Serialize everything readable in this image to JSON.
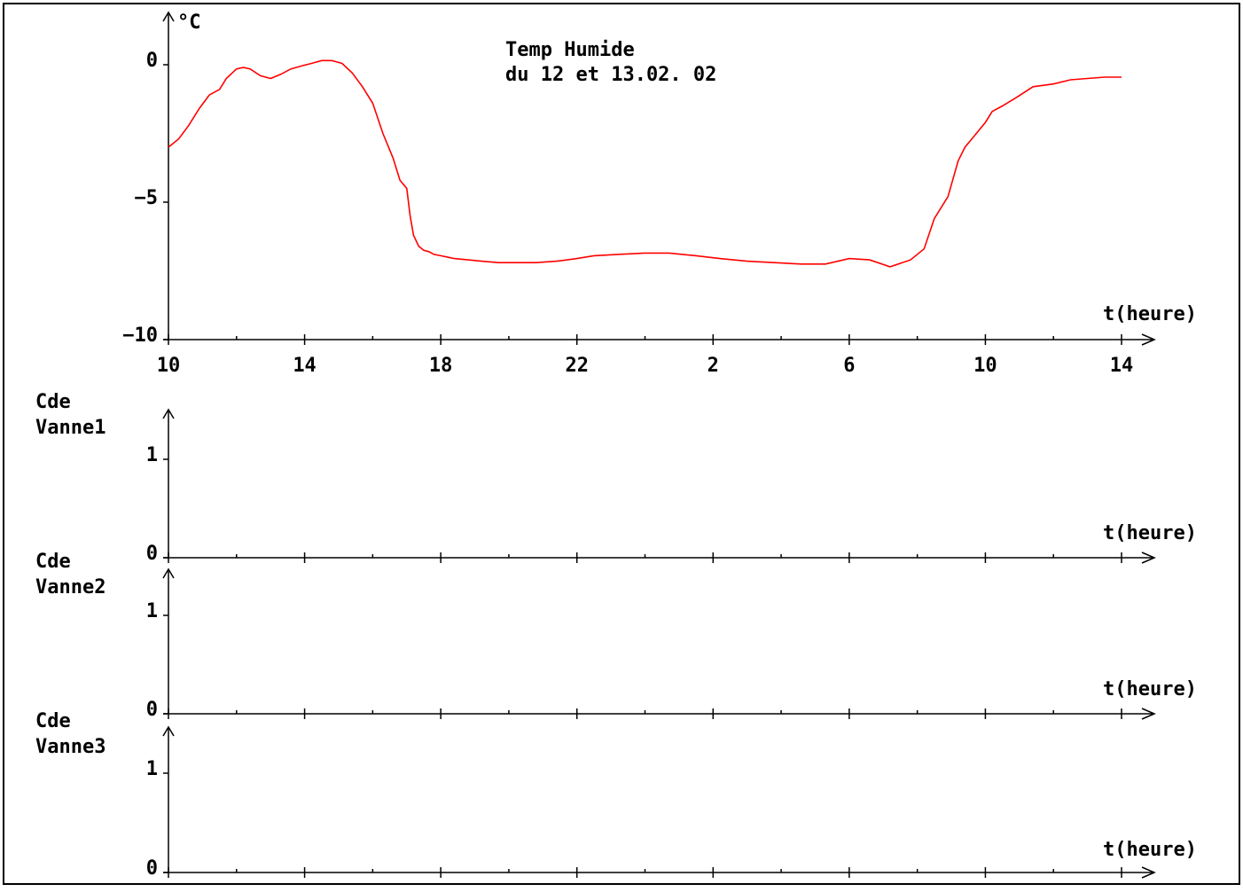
{
  "chart_data": [
    {
      "type": "line",
      "title": [
        "Temp Humide",
        "du 12 et 13.02. 02"
      ],
      "ylabel": "°C",
      "xlabel": "t(heure)",
      "ylim": [
        -10,
        1.5
      ],
      "yticks": [
        0,
        -5,
        -10
      ],
      "ytick_labels": [
        "0",
        "−5",
        "−10"
      ],
      "xtick_labels": [
        "10",
        "14",
        "18",
        "22",
        "2",
        "6",
        "10",
        "14"
      ],
      "xlim_hours_elapsed": [
        0,
        28
      ],
      "grid": false,
      "series": [
        {
          "color": "#ff0000",
          "x": [
            0,
            0.3,
            0.6,
            0.9,
            1.2,
            1.5,
            1.7,
            2.0,
            2.2,
            2.4,
            2.7,
            3.0,
            3.3,
            3.6,
            3.9,
            4.2,
            4.5,
            4.8,
            5.1,
            5.4,
            5.7,
            6.0,
            6.3,
            6.6,
            6.8,
            7.0,
            7.1,
            7.2,
            7.35,
            7.5,
            7.65,
            7.8,
            8.0,
            8.4,
            8.8,
            9.2,
            9.7,
            10.2,
            10.8,
            11.4,
            12.0,
            12.5,
            13.2,
            14.0,
            14.7,
            15.5,
            16.2,
            17.0,
            17.8,
            18.6,
            19.3,
            20.0,
            20.6,
            21.2,
            21.8,
            22.2,
            22.5,
            22.9,
            23.2,
            23.4,
            23.6,
            23.8,
            24.0,
            24.2,
            24.5,
            24.9,
            25.4,
            26.0,
            26.5,
            27.0,
            27.5,
            28.0
          ],
          "y": [
            -3.0,
            -2.7,
            -2.2,
            -1.6,
            -1.1,
            -0.9,
            -0.5,
            -0.15,
            -0.1,
            -0.15,
            -0.4,
            -0.5,
            -0.35,
            -0.15,
            -0.05,
            0.05,
            0.15,
            0.15,
            0.05,
            -0.3,
            -0.8,
            -1.4,
            -2.5,
            -3.4,
            -4.2,
            -4.5,
            -5.5,
            -6.2,
            -6.6,
            -6.75,
            -6.8,
            -6.9,
            -6.95,
            -7.05,
            -7.1,
            -7.15,
            -7.2,
            -7.2,
            -7.2,
            -7.15,
            -7.05,
            -6.95,
            -6.9,
            -6.85,
            -6.85,
            -6.95,
            -7.05,
            -7.15,
            -7.2,
            -7.25,
            -7.25,
            -7.05,
            -7.1,
            -7.35,
            -7.1,
            -6.7,
            -5.6,
            -4.8,
            -3.5,
            -3.0,
            -2.7,
            -2.4,
            -2.1,
            -1.7,
            -1.5,
            -1.2,
            -0.8,
            -0.7,
            -0.55,
            -0.5,
            -0.45,
            -0.45
          ]
        }
      ]
    },
    {
      "type": "line",
      "ylabel": [
        "Cde",
        "Vanne1"
      ],
      "xlabel": "t(heure)",
      "ylim": [
        0,
        1.5
      ],
      "yticks": [
        1,
        0
      ],
      "ytick_labels": [
        "1",
        "0"
      ],
      "series": []
    },
    {
      "type": "line",
      "ylabel": [
        "Cde",
        "Vanne2"
      ],
      "xlabel": "t(heure)",
      "ylim": [
        0,
        1.5
      ],
      "yticks": [
        1,
        0
      ],
      "ytick_labels": [
        "1",
        "0"
      ],
      "series": []
    },
    {
      "type": "line",
      "ylabel": [
        "Cde",
        "Vanne3"
      ],
      "xlabel": "t(heure)",
      "ylim": [
        0,
        1.5
      ],
      "yticks": [
        1,
        0
      ],
      "ytick_labels": [
        "1",
        "0"
      ],
      "series": []
    }
  ]
}
